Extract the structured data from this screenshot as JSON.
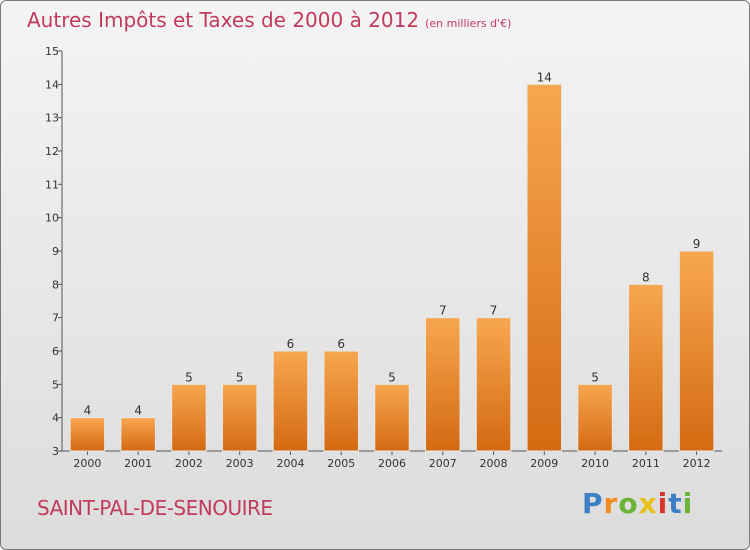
{
  "chart_data": {
    "type": "bar",
    "title": "Autres Impôts et Taxes de 2000 à 2012",
    "subtitle": "(en milliers d'€)",
    "categories": [
      "2000",
      "2001",
      "2002",
      "2003",
      "2004",
      "2005",
      "2006",
      "2007",
      "2008",
      "2009",
      "2010",
      "2011",
      "2012"
    ],
    "values": [
      4,
      4,
      5,
      5,
      6,
      6,
      5,
      7,
      7,
      14,
      5,
      8,
      9
    ],
    "ylim": [
      3,
      15
    ],
    "yticks": [
      3,
      4,
      5,
      6,
      7,
      8,
      9,
      10,
      11,
      12,
      13,
      14,
      15
    ],
    "xlabel": "",
    "ylabel": "",
    "grid": false,
    "bar_color": "#f28b2c"
  },
  "footer": {
    "commune": "SAINT-PAL-DE-SENOUIRE",
    "logo_letters": [
      "P",
      "r",
      "o",
      "x",
      "i",
      "t",
      "i"
    ]
  }
}
